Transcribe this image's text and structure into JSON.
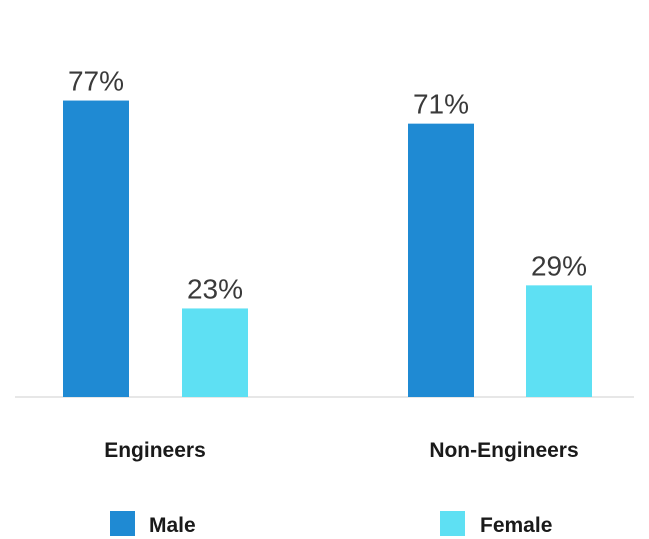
{
  "chart_data": {
    "type": "bar",
    "categories": [
      "Engineers",
      "Non-Engineers"
    ],
    "series": [
      {
        "name": "Male",
        "values": [
          77,
          71
        ],
        "value_labels": [
          "77%",
          "71%"
        ],
        "color": "#1f8ad3"
      },
      {
        "name": "Female",
        "values": [
          23,
          29
        ],
        "value_labels": [
          "23%",
          "29%"
        ],
        "color": "#5ee0f3"
      }
    ],
    "title": "",
    "xlabel": "",
    "ylabel": "",
    "ylim": [
      0,
      100
    ],
    "unit": "%",
    "grid": false,
    "legend_position": "bottom",
    "baseline_color": "#cfcfcf"
  }
}
